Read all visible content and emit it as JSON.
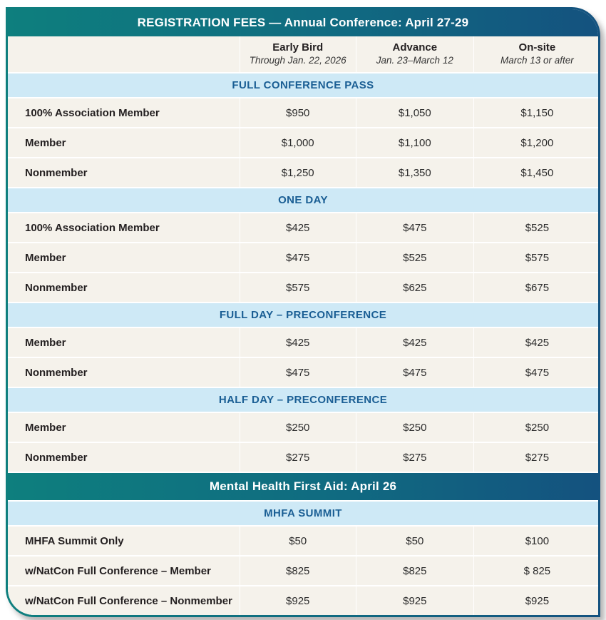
{
  "header": {
    "title": "REGISTRATION FEES — Annual Conference: April 27-29"
  },
  "column_headers": [
    {
      "title": "Early Bird",
      "subtitle": "Through Jan. 22, 2026"
    },
    {
      "title": "Advance",
      "subtitle": "Jan. 23–March 12"
    },
    {
      "title": "On-site",
      "subtitle": "March 13 or after"
    }
  ],
  "sections": [
    {
      "title": "FULL CONFERENCE PASS",
      "rows": [
        {
          "label": "100% Association Member",
          "values": [
            "$950",
            "$1,050",
            "$1,150"
          ]
        },
        {
          "label": "Member",
          "values": [
            "$1,000",
            "$1,100",
            "$1,200"
          ]
        },
        {
          "label": "Nonmember",
          "values": [
            "$1,250",
            "$1,350",
            "$1,450"
          ]
        }
      ]
    },
    {
      "title": "ONE DAY",
      "rows": [
        {
          "label": "100% Association Member",
          "values": [
            "$425",
            "$475",
            "$525"
          ]
        },
        {
          "label": "Member",
          "values": [
            "$475",
            "$525",
            "$575"
          ]
        },
        {
          "label": "Nonmember",
          "values": [
            "$575",
            "$625",
            "$675"
          ]
        }
      ]
    },
    {
      "title": "FULL DAY – PRECONFERENCE",
      "rows": [
        {
          "label": "Member",
          "values": [
            "$425",
            "$425",
            "$425"
          ]
        },
        {
          "label": "Nonmember",
          "values": [
            "$475",
            "$475",
            "$475"
          ]
        }
      ]
    },
    {
      "title": "HALF DAY – PRECONFERENCE",
      "rows": [
        {
          "label": "Member",
          "values": [
            "$250",
            "$250",
            "$250"
          ]
        },
        {
          "label": "Nonmember",
          "values": [
            "$275",
            "$275",
            "$275"
          ]
        }
      ]
    }
  ],
  "mhfa": {
    "title": "Mental Health First Aid: April 26",
    "section": {
      "title": "MHFA SUMMIT",
      "rows": [
        {
          "label": "MHFA Summit Only",
          "values": [
            "$50",
            "$50",
            "$100"
          ]
        },
        {
          "label": "w/NatCon Full Conference – Member",
          "values": [
            "$825",
            "$825",
            "$ 825"
          ]
        },
        {
          "label": "w/NatCon Full Conference – Nonmember",
          "values": [
            "$925",
            "$925",
            "$925"
          ]
        }
      ]
    }
  },
  "colors": {
    "gradient_teal": "#0E7F7E",
    "gradient_blue": "#14527F",
    "section_bar_bg": "#CEE9F6",
    "section_bar_text": "#1A5E94",
    "row_bg": "#F5F2EB",
    "banner_text": "#FFFFFF"
  }
}
